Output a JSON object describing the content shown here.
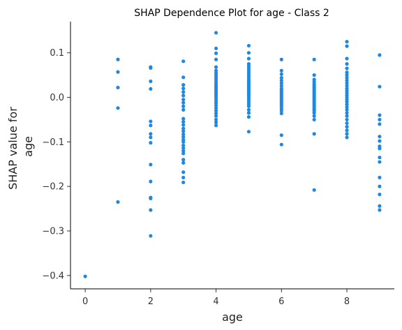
{
  "chart_data": {
    "type": "scatter",
    "title": "SHAP Dependence Plot for age - Class 2",
    "xlabel": "age",
    "ylabel_lines": [
      "SHAP value for",
      "age"
    ],
    "xlim": [
      -0.45,
      9.45
    ],
    "ylim": [
      -0.43,
      0.17
    ],
    "xticks": [
      0,
      2,
      4,
      6,
      8
    ],
    "xtick_labels": [
      "0",
      "2",
      "4",
      "6",
      "8"
    ],
    "yticks": [
      0.1,
      0.0,
      -0.1,
      -0.2,
      -0.3,
      -0.4
    ],
    "ytick_labels": [
      "0.1",
      "0.0",
      "−0.1",
      "−0.2",
      "−0.3",
      "−0.4"
    ],
    "color": "#1e88e5",
    "grid": false,
    "points": [
      [
        0,
        -0.402
      ],
      [
        1,
        0.085
      ],
      [
        1,
        0.057
      ],
      [
        1,
        0.022
      ],
      [
        1,
        -0.024
      ],
      [
        1,
        -0.235
      ],
      [
        2,
        0.068
      ],
      [
        2,
        0.066
      ],
      [
        2,
        0.036
      ],
      [
        2,
        0.019
      ],
      [
        2,
        -0.054
      ],
      [
        2,
        -0.063
      ],
      [
        2,
        -0.082
      ],
      [
        2,
        -0.09
      ],
      [
        2,
        -0.102
      ],
      [
        2,
        -0.151
      ],
      [
        2,
        -0.189
      ],
      [
        2,
        -0.225
      ],
      [
        2,
        -0.227
      ],
      [
        2,
        -0.253
      ],
      [
        2,
        -0.311
      ],
      [
        3,
        0.081
      ],
      [
        3,
        0.045
      ],
      [
        3,
        0.028
      ],
      [
        3,
        0.02
      ],
      [
        3,
        0.012
      ],
      [
        3,
        0.004
      ],
      [
        3,
        -0.005
      ],
      [
        3,
        -0.012
      ],
      [
        3,
        -0.02
      ],
      [
        3,
        -0.028
      ],
      [
        3,
        -0.048
      ],
      [
        3,
        -0.055
      ],
      [
        3,
        -0.062
      ],
      [
        3,
        -0.07
      ],
      [
        3,
        -0.076
      ],
      [
        3,
        -0.083
      ],
      [
        3,
        -0.089
      ],
      [
        3,
        -0.095
      ],
      [
        3,
        -0.1
      ],
      [
        3,
        -0.108
      ],
      [
        3,
        -0.114
      ],
      [
        3,
        -0.12
      ],
      [
        3,
        -0.126
      ],
      [
        3,
        -0.14
      ],
      [
        3,
        -0.147
      ],
      [
        3,
        -0.168
      ],
      [
        3,
        -0.18
      ],
      [
        3,
        -0.191
      ],
      [
        4,
        0.145
      ],
      [
        4,
        0.11
      ],
      [
        4,
        0.099
      ],
      [
        4,
        0.085
      ],
      [
        4,
        0.068
      ],
      [
        4,
        0.06
      ],
      [
        4,
        0.055
      ],
      [
        4,
        0.05
      ],
      [
        4,
        0.045
      ],
      [
        4,
        0.04
      ],
      [
        4,
        0.035
      ],
      [
        4,
        0.03
      ],
      [
        4,
        0.026
      ],
      [
        4,
        0.022
      ],
      [
        4,
        0.018
      ],
      [
        4,
        0.014
      ],
      [
        4,
        0.01
      ],
      [
        4,
        0.006
      ],
      [
        4,
        0.002
      ],
      [
        4,
        -0.003
      ],
      [
        4,
        -0.008
      ],
      [
        4,
        -0.013
      ],
      [
        4,
        -0.018
      ],
      [
        4,
        -0.024
      ],
      [
        4,
        -0.03
      ],
      [
        4,
        -0.036
      ],
      [
        4,
        -0.042
      ],
      [
        4,
        -0.05
      ],
      [
        4,
        -0.056
      ],
      [
        4,
        -0.063
      ],
      [
        5,
        0.116
      ],
      [
        5,
        0.1
      ],
      [
        5,
        0.087
      ],
      [
        5,
        0.075
      ],
      [
        5,
        0.07
      ],
      [
        5,
        0.065
      ],
      [
        5,
        0.06
      ],
      [
        5,
        0.055
      ],
      [
        5,
        0.05
      ],
      [
        5,
        0.045
      ],
      [
        5,
        0.04
      ],
      [
        5,
        0.036
      ],
      [
        5,
        0.032
      ],
      [
        5,
        0.028
      ],
      [
        5,
        0.024
      ],
      [
        5,
        0.02
      ],
      [
        5,
        0.016
      ],
      [
        5,
        0.012
      ],
      [
        5,
        0.008
      ],
      [
        5,
        0.004
      ],
      [
        5,
        0.0
      ],
      [
        5,
        -0.005
      ],
      [
        5,
        -0.01
      ],
      [
        5,
        -0.015
      ],
      [
        5,
        -0.02
      ],
      [
        5,
        -0.028
      ],
      [
        5,
        -0.035
      ],
      [
        5,
        -0.044
      ],
      [
        5,
        -0.077
      ],
      [
        6,
        0.085
      ],
      [
        6,
        0.06
      ],
      [
        6,
        0.052
      ],
      [
        6,
        0.044
      ],
      [
        6,
        0.038
      ],
      [
        6,
        0.032
      ],
      [
        6,
        0.026
      ],
      [
        6,
        0.02
      ],
      [
        6,
        0.016
      ],
      [
        6,
        0.012
      ],
      [
        6,
        0.008
      ],
      [
        6,
        0.004
      ],
      [
        6,
        0.0
      ],
      [
        6,
        -0.004
      ],
      [
        6,
        -0.008
      ],
      [
        6,
        -0.012
      ],
      [
        6,
        -0.016
      ],
      [
        6,
        -0.02
      ],
      [
        6,
        -0.025
      ],
      [
        6,
        -0.03
      ],
      [
        6,
        -0.036
      ],
      [
        6,
        -0.085
      ],
      [
        6,
        -0.106
      ],
      [
        7,
        0.085
      ],
      [
        7,
        0.05
      ],
      [
        7,
        0.04
      ],
      [
        7,
        0.035
      ],
      [
        7,
        0.03
      ],
      [
        7,
        0.026
      ],
      [
        7,
        0.022
      ],
      [
        7,
        0.018
      ],
      [
        7,
        0.014
      ],
      [
        7,
        0.01
      ],
      [
        7,
        0.006
      ],
      [
        7,
        0.002
      ],
      [
        7,
        -0.002
      ],
      [
        7,
        -0.006
      ],
      [
        7,
        -0.01
      ],
      [
        7,
        -0.014
      ],
      [
        7,
        -0.018
      ],
      [
        7,
        -0.022
      ],
      [
        7,
        -0.026
      ],
      [
        7,
        -0.03
      ],
      [
        7,
        -0.035
      ],
      [
        7,
        -0.042
      ],
      [
        7,
        -0.05
      ],
      [
        7,
        -0.082
      ],
      [
        7,
        -0.208
      ],
      [
        8,
        0.125
      ],
      [
        8,
        0.115
      ],
      [
        8,
        0.087
      ],
      [
        8,
        0.075
      ],
      [
        8,
        0.065
      ],
      [
        8,
        0.056
      ],
      [
        8,
        0.05
      ],
      [
        8,
        0.044
      ],
      [
        8,
        0.038
      ],
      [
        8,
        0.032
      ],
      [
        8,
        0.026
      ],
      [
        8,
        0.02
      ],
      [
        8,
        0.015
      ],
      [
        8,
        0.01
      ],
      [
        8,
        0.005
      ],
      [
        8,
        0.0
      ],
      [
        8,
        -0.005
      ],
      [
        8,
        -0.01
      ],
      [
        8,
        -0.016
      ],
      [
        8,
        -0.022
      ],
      [
        8,
        -0.028
      ],
      [
        8,
        -0.035
      ],
      [
        8,
        -0.042
      ],
      [
        8,
        -0.05
      ],
      [
        8,
        -0.058
      ],
      [
        8,
        -0.066
      ],
      [
        8,
        -0.074
      ],
      [
        8,
        -0.082
      ],
      [
        8,
        -0.09
      ],
      [
        9,
        0.095
      ],
      [
        9,
        0.024
      ],
      [
        9,
        -0.04
      ],
      [
        9,
        -0.05
      ],
      [
        9,
        -0.06
      ],
      [
        9,
        -0.088
      ],
      [
        9,
        -0.098
      ],
      [
        9,
        -0.11
      ],
      [
        9,
        -0.115
      ],
      [
        9,
        -0.135
      ],
      [
        9,
        -0.145
      ],
      [
        9,
        -0.18
      ],
      [
        9,
        -0.2
      ],
      [
        9,
        -0.218
      ],
      [
        9,
        -0.244
      ],
      [
        9,
        -0.253
      ]
    ]
  }
}
